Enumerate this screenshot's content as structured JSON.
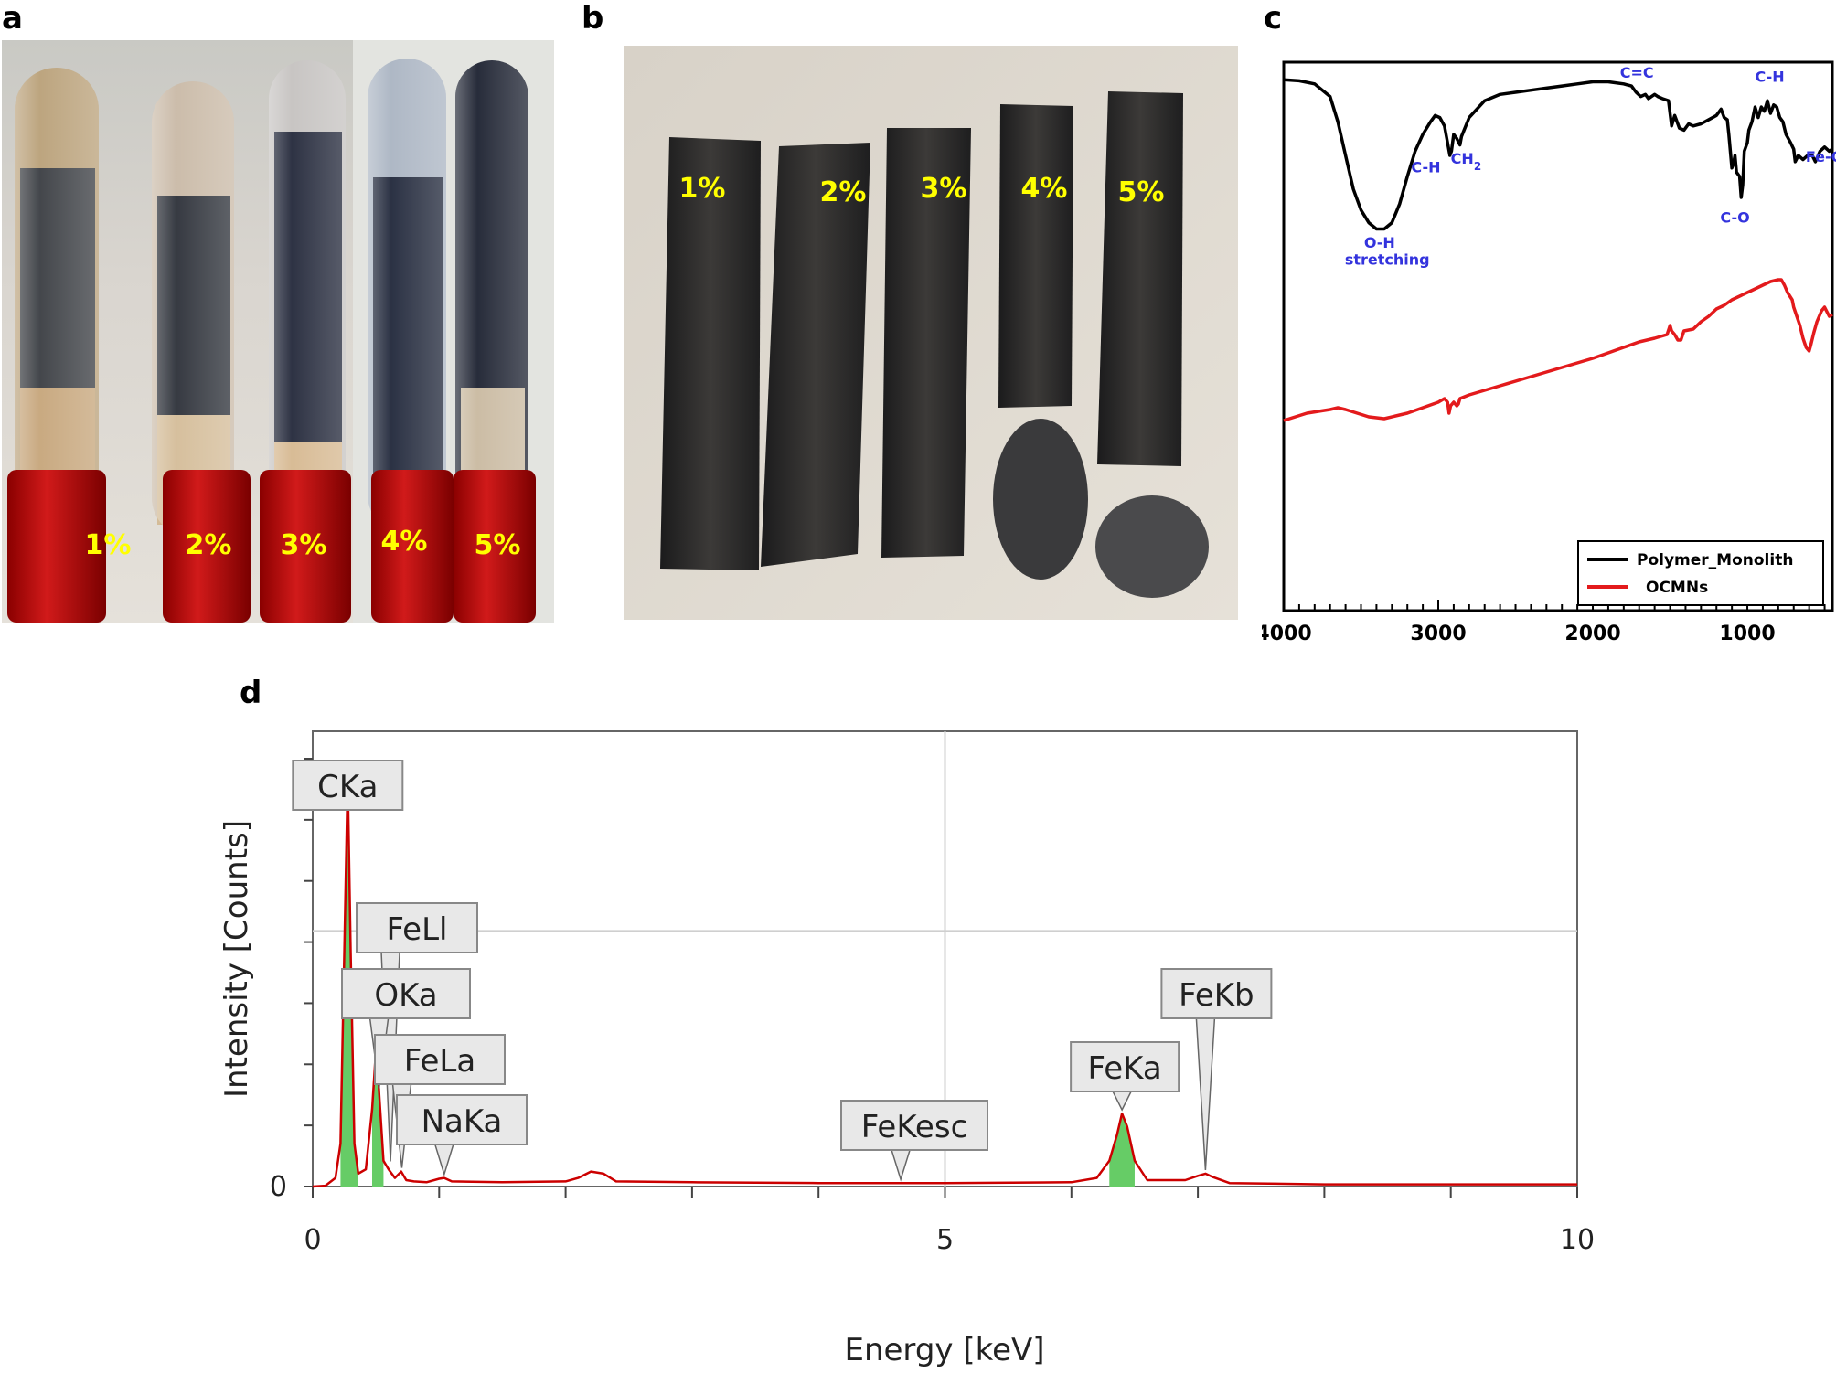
{
  "panels": {
    "a": "a",
    "b": "b",
    "c": "c",
    "d": "d"
  },
  "panel_a": {
    "tube_labels": [
      "1%",
      "2%",
      "3%",
      "4%",
      "5%"
    ]
  },
  "panel_b": {
    "rod_labels": [
      "1%",
      "2%",
      "3%",
      "4%",
      "5%"
    ]
  },
  "colors": {
    "black_series": "#000000",
    "red_series": "#e31a1c",
    "label_yellow": "#ffff00",
    "annotation_blue": "#3333dd",
    "eds_fill": "#66cc66",
    "eds_line": "#cc0000"
  },
  "chart_data": [
    {
      "id": "ftir",
      "type": "line",
      "xlim": [
        4000,
        450
      ],
      "x_reversed": true,
      "x_ticks": [
        4000,
        3000,
        2000,
        1000
      ],
      "x_tick_labels": [
        "4000",
        "3000",
        "2000",
        "1000"
      ],
      "xlabel": "",
      "ylabel": "",
      "y_units": "arbitrary (stacked offsets)",
      "legend": {
        "position": "bottom-right",
        "entries": [
          "Polymer_Monolith",
          "OCMNs"
        ]
      },
      "series": [
        {
          "name": "Polymer_Monolith",
          "color": "#000000",
          "points": [
            [
              4000,
              96
            ],
            [
              3900,
              95.5
            ],
            [
              3800,
              94
            ],
            [
              3700,
              88
            ],
            [
              3650,
              76
            ],
            [
              3600,
              60
            ],
            [
              3550,
              44
            ],
            [
              3500,
              34
            ],
            [
              3450,
              28
            ],
            [
              3400,
              25
            ],
            [
              3350,
              25
            ],
            [
              3300,
              28
            ],
            [
              3250,
              37
            ],
            [
              3200,
              50
            ],
            [
              3150,
              62
            ],
            [
              3100,
              70
            ],
            [
              3050,
              76
            ],
            [
              3020,
              79
            ],
            [
              2990,
              78
            ],
            [
              2960,
              74
            ],
            [
              2940,
              66
            ],
            [
              2925,
              60
            ],
            [
              2915,
              62
            ],
            [
              2900,
              70
            ],
            [
              2880,
              68
            ],
            [
              2860,
              65
            ],
            [
              2850,
              69
            ],
            [
              2800,
              78
            ],
            [
              2700,
              86
            ],
            [
              2600,
              89
            ],
            [
              2500,
              90
            ],
            [
              2400,
              91
            ],
            [
              2300,
              92
            ],
            [
              2200,
              93
            ],
            [
              2100,
              94
            ],
            [
              2000,
              95
            ],
            [
              1900,
              95
            ],
            [
              1800,
              94
            ],
            [
              1750,
              93
            ],
            [
              1720,
              90
            ],
            [
              1690,
              88
            ],
            [
              1660,
              89
            ],
            [
              1640,
              87
            ],
            [
              1620,
              88
            ],
            [
              1600,
              89
            ],
            [
              1580,
              88
            ],
            [
              1550,
              87
            ],
            [
              1510,
              86
            ],
            [
              1490,
              74
            ],
            [
              1470,
              79
            ],
            [
              1440,
              73
            ],
            [
              1410,
              72
            ],
            [
              1380,
              75
            ],
            [
              1350,
              74
            ],
            [
              1300,
              75
            ],
            [
              1250,
              77
            ],
            [
              1200,
              79
            ],
            [
              1170,
              82
            ],
            [
              1150,
              78
            ],
            [
              1130,
              77
            ],
            [
              1120,
              70
            ],
            [
              1100,
              54
            ],
            [
              1090,
              56
            ],
            [
              1080,
              60
            ],
            [
              1070,
              52
            ],
            [
              1050,
              50
            ],
            [
              1040,
              40
            ],
            [
              1030,
              46
            ],
            [
              1020,
              62
            ],
            [
              1000,
              66
            ],
            [
              990,
              72
            ],
            [
              970,
              76
            ],
            [
              950,
              83
            ],
            [
              930,
              78
            ],
            [
              910,
              83
            ],
            [
              890,
              81
            ],
            [
              870,
              86
            ],
            [
              850,
              80
            ],
            [
              830,
              84
            ],
            [
              810,
              83
            ],
            [
              790,
              78
            ],
            [
              770,
              76
            ],
            [
              750,
              70
            ],
            [
              720,
              66
            ],
            [
              700,
              63
            ],
            [
              690,
              57
            ],
            [
              670,
              60
            ],
            [
              640,
              58
            ],
            [
              610,
              60
            ],
            [
              580,
              60
            ],
            [
              560,
              57
            ],
            [
              530,
              62
            ],
            [
              500,
              64
            ],
            [
              470,
              62
            ],
            [
              450,
              63
            ]
          ]
        },
        {
          "name": "OCMNs",
          "color": "#e31a1c",
          "points": [
            [
              4000,
              0
            ],
            [
              3850,
              4
            ],
            [
              3700,
              6
            ],
            [
              3650,
              7
            ],
            [
              3600,
              6
            ],
            [
              3450,
              2
            ],
            [
              3350,
              1
            ],
            [
              3200,
              4
            ],
            [
              3100,
              7
            ],
            [
              3000,
              10
            ],
            [
              2960,
              12
            ],
            [
              2940,
              10
            ],
            [
              2930,
              4
            ],
            [
              2920,
              8
            ],
            [
              2900,
              10
            ],
            [
              2880,
              8
            ],
            [
              2870,
              9
            ],
            [
              2860,
              12
            ],
            [
              2800,
              14
            ],
            [
              2600,
              19
            ],
            [
              2400,
              24
            ],
            [
              2200,
              29
            ],
            [
              2000,
              34
            ],
            [
              1900,
              37
            ],
            [
              1800,
              40
            ],
            [
              1700,
              43
            ],
            [
              1600,
              45
            ],
            [
              1520,
              47
            ],
            [
              1500,
              52
            ],
            [
              1490,
              49
            ],
            [
              1470,
              47
            ],
            [
              1450,
              44
            ],
            [
              1430,
              44
            ],
            [
              1410,
              49
            ],
            [
              1350,
              50
            ],
            [
              1300,
              54
            ],
            [
              1250,
              57
            ],
            [
              1200,
              61
            ],
            [
              1150,
              63
            ],
            [
              1100,
              66
            ],
            [
              1050,
              68
            ],
            [
              1000,
              70
            ],
            [
              950,
              72
            ],
            [
              900,
              74
            ],
            [
              850,
              76
            ],
            [
              800,
              77
            ],
            [
              780,
              77
            ],
            [
              760,
              74
            ],
            [
              740,
              70
            ],
            [
              710,
              66
            ],
            [
              700,
              62
            ],
            [
              680,
              57
            ],
            [
              660,
              52
            ],
            [
              640,
              45
            ],
            [
              620,
              40
            ],
            [
              600,
              38
            ],
            [
              590,
              41
            ],
            [
              570,
              48
            ],
            [
              550,
              54
            ],
            [
              520,
              60
            ],
            [
              500,
              62
            ],
            [
              470,
              57
            ],
            [
              450,
              58
            ]
          ]
        }
      ],
      "annotations": [
        {
          "text": "O-H",
          "x": 3380,
          "y": 16
        },
        {
          "text": "stretching",
          "x": 3330,
          "y": 8
        },
        {
          "text": "C-H",
          "x": 3080,
          "y": 52
        },
        {
          "text": "CH",
          "x": 2820,
          "y": 56,
          "subscript": "2"
        },
        {
          "text": "C=C",
          "x": 1715,
          "y": 97
        },
        {
          "text": "C-O",
          "x": 1080,
          "y": 28
        },
        {
          "text": "C-H",
          "x": 855,
          "y": 95
        },
        {
          "text": "Fe-O",
          "x": 500,
          "y": 57
        }
      ]
    },
    {
      "id": "eds",
      "type": "line",
      "xlabel": "Energy [keV]",
      "ylabel": "Intensity [Counts]",
      "xlim": [
        0,
        10
      ],
      "x_ticks": [
        0,
        5,
        10
      ],
      "x_tick_labels": [
        "0",
        "5",
        "10"
      ],
      "y_tick_labels": [
        "0"
      ],
      "y_units": "relative counts (full scale = 1.0)",
      "grid": true,
      "points": [
        [
          0,
          0
        ],
        [
          0.1,
          0.002
        ],
        [
          0.18,
          0.02
        ],
        [
          0.22,
          0.1
        ],
        [
          0.25,
          0.55
        ],
        [
          0.277,
          0.95
        ],
        [
          0.3,
          0.55
        ],
        [
          0.33,
          0.1
        ],
        [
          0.36,
          0.03
        ],
        [
          0.42,
          0.04
        ],
        [
          0.47,
          0.18
        ],
        [
          0.505,
          0.34
        ],
        [
          0.525,
          0.22
        ],
        [
          0.56,
          0.06
        ],
        [
          0.6,
          0.04
        ],
        [
          0.65,
          0.02
        ],
        [
          0.7,
          0.035
        ],
        [
          0.74,
          0.015
        ],
        [
          0.8,
          0.012
        ],
        [
          0.9,
          0.01
        ],
        [
          1.0,
          0.018
        ],
        [
          1.04,
          0.02
        ],
        [
          1.1,
          0.012
        ],
        [
          1.5,
          0.01
        ],
        [
          2.0,
          0.012
        ],
        [
          2.1,
          0.02
        ],
        [
          2.2,
          0.035
        ],
        [
          2.3,
          0.03
        ],
        [
          2.4,
          0.012
        ],
        [
          3.0,
          0.01
        ],
        [
          4.0,
          0.008
        ],
        [
          5.0,
          0.008
        ],
        [
          6.0,
          0.01
        ],
        [
          6.2,
          0.02
        ],
        [
          6.3,
          0.06
        ],
        [
          6.36,
          0.12
        ],
        [
          6.4,
          0.17
        ],
        [
          6.44,
          0.14
        ],
        [
          6.5,
          0.06
        ],
        [
          6.6,
          0.015
        ],
        [
          6.9,
          0.015
        ],
        [
          7.0,
          0.025
        ],
        [
          7.06,
          0.03
        ],
        [
          7.12,
          0.022
        ],
        [
          7.25,
          0.008
        ],
        [
          8,
          0.005
        ],
        [
          9,
          0.005
        ],
        [
          10,
          0.005
        ]
      ],
      "filled_peaks": [
        [
          0.2,
          0.36
        ],
        [
          0.46,
          0.56
        ],
        [
          6.28,
          6.58
        ]
      ],
      "peak_labels": [
        {
          "label": "CKa",
          "energy": 0.277,
          "intensity": 0.95
        },
        {
          "label": "FeLl",
          "energy": 0.615,
          "intensity": 0.05
        },
        {
          "label": "OKa",
          "energy": 0.525,
          "intensity": 0.22
        },
        {
          "label": "FeLa",
          "energy": 0.705,
          "intensity": 0.035
        },
        {
          "label": "NaKa",
          "energy": 1.04,
          "intensity": 0.02
        },
        {
          "label": "FeKesc",
          "energy": 4.65,
          "intensity": 0.008
        },
        {
          "label": "FeKa",
          "energy": 6.4,
          "intensity": 0.17
        },
        {
          "label": "FeKb",
          "energy": 7.06,
          "intensity": 0.03
        }
      ]
    }
  ]
}
